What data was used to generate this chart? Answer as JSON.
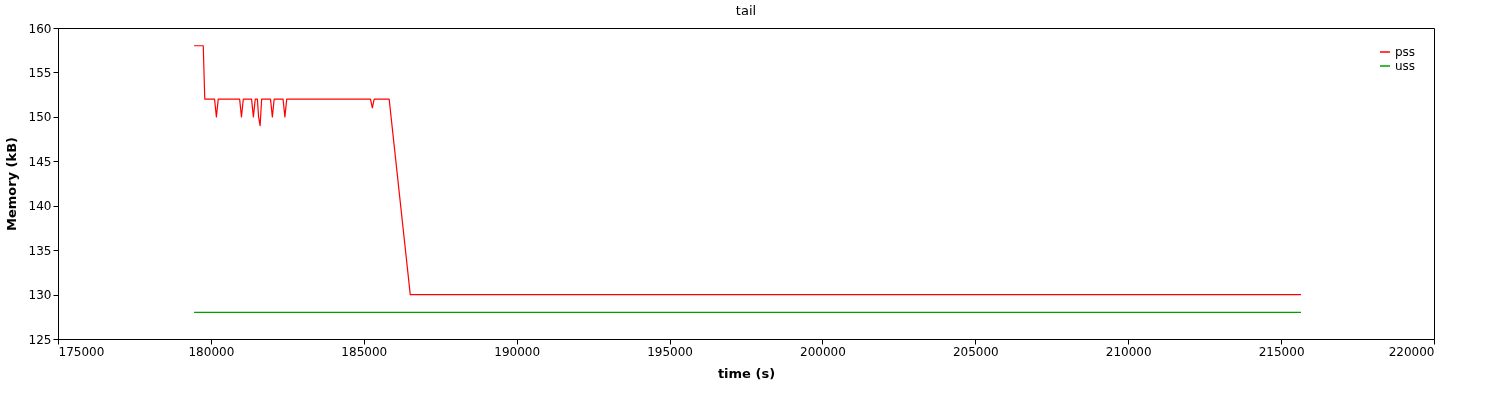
{
  "chart_data": {
    "type": "line",
    "title": "tail",
    "xlabel": "time (s)",
    "ylabel": "Memory (kB)",
    "xlim": [
      175000,
      220000
    ],
    "xticks": [
      175000,
      180000,
      185000,
      190000,
      195000,
      200000,
      205000,
      210000,
      215000,
      220000
    ],
    "ylim": [
      125,
      160
    ],
    "yticks": [
      125,
      130,
      135,
      140,
      145,
      150,
      155,
      160
    ],
    "grid": false,
    "legend": "top right",
    "marker": "none",
    "line_style": "solid",
    "series": [
      {
        "name": "pss",
        "color": "#ff0000",
        "x": [
          179450,
          179750,
          179800,
          180120,
          180180,
          180240,
          180940,
          181000,
          181060,
          181330,
          181390,
          181450,
          181520,
          181560,
          181610,
          181660,
          181950,
          182010,
          182070,
          182360,
          182420,
          182480,
          185220,
          185280,
          185340,
          185830,
          186520,
          215650
        ],
        "values": [
          158,
          158,
          152,
          152,
          150,
          152,
          152,
          150,
          152,
          152,
          150,
          152,
          152,
          150,
          149,
          152,
          152,
          150,
          152,
          152,
          150,
          152,
          152,
          151,
          152,
          152,
          130,
          130
        ]
      },
      {
        "name": "uss",
        "color": "#00a000",
        "x": [
          179450,
          215650
        ],
        "values": [
          128,
          128
        ]
      }
    ]
  }
}
